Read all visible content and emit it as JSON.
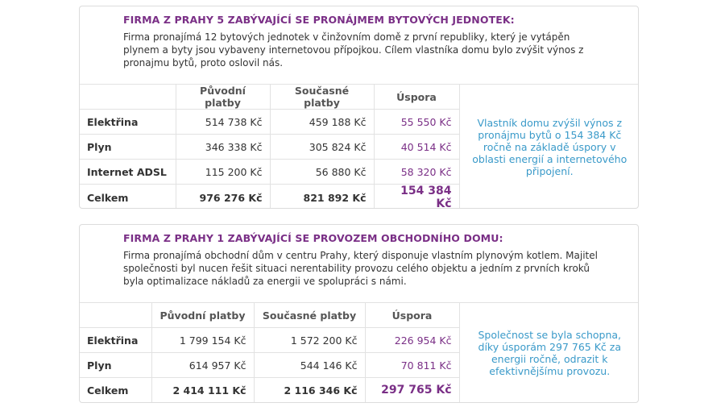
{
  "sections": [
    {
      "title": "FIRMA Z PRAHY 5 ZABÝVAJÍCÍ SE PRONÁJMEM BYTOVÝCH JEDNOTEK:",
      "description": "Firma pronajímá 12 bytových jednotek v činžovním domě z první republiky, který je vytápěn plynem a byty jsou vybaveny internetovou přípojkou. Cílem vlastníka domu bylo zvýšit výnos z pronajmu bytů, proto oslovil nás.",
      "columns": [
        "Původní platby",
        "Současné platby",
        "Úspora"
      ],
      "rows": [
        {
          "label": "Elektřina",
          "original": "514 738 Kč",
          "current": "459 188 Kč",
          "saving": "55 550 Kč"
        },
        {
          "label": "Plyn",
          "original": "346 338 Kč",
          "current": "305 824 Kč",
          "saving": "40 514 Kč"
        },
        {
          "label": "Internet ADSL",
          "original": "115 200 Kč",
          "current": "56 880 Kč",
          "saving": "58 320 Kč"
        }
      ],
      "total": {
        "label": "Celkem",
        "original": "976 276 Kč",
        "current": "821 892 Kč",
        "saving": "154 384 Kč"
      },
      "note": "Vlastník domu zvýšil výnos z pronájmu bytů o 154 384 Kč ročně na základě úspory v oblasti energií a internetového připojení."
    },
    {
      "title": "FIRMA Z PRAHY 1 ZABÝVAJÍCÍ SE PROVOZEM OBCHODNÍHO DOMU:",
      "description": "Firma pronajímá obchodní dům v centru Prahy, který disponuje vlastním plynovým kotlem. Majitel společnosti byl nucen řešit situaci nerentability provozu celého objektu a jedním z prvních kroků byla optimalizace nákladů za energii ve spolupráci s námi.",
      "columns": [
        "Původní platby",
        "Současné platby",
        "Úspora"
      ],
      "rows": [
        {
          "label": "Elektřina",
          "original": "1 799 154 Kč",
          "current": "1 572 200 Kč",
          "saving": "226 954 Kč"
        },
        {
          "label": "Plyn",
          "original": "614 957 Kč",
          "current": "544 146 Kč",
          "saving": "70 811 Kč"
        }
      ],
      "total": {
        "label": "Celkem",
        "original": "2 414 111 Kč",
        "current": "2 116 346 Kč",
        "saving": "297 765 Kč"
      },
      "note": "Společnost se byla schopna, díky úsporám 297 765 Kč za energii ročně, odrazit k efektivnějšímu provozu."
    }
  ]
}
